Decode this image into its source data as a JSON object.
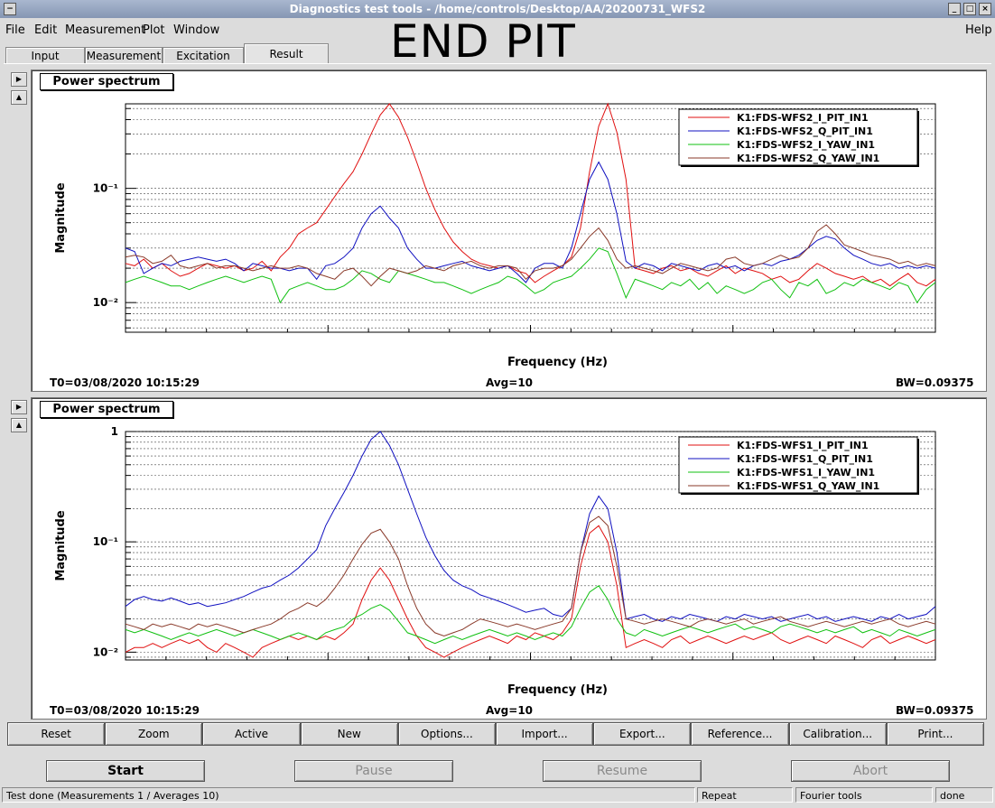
{
  "window": {
    "title": "Diagnostics test tools - /home/controls/Desktop/AA/20200731_WFS2"
  },
  "overlay_text": "END PIT",
  "menu": [
    "File",
    "Edit",
    "Measurement",
    "Plot",
    "Window",
    "Help"
  ],
  "tabs": [
    "Input",
    "Measurement",
    "Excitation",
    "Result"
  ],
  "active_tab": "Result",
  "plots": [
    {
      "title": "Power spectrum",
      "t0": "T0=03/08/2020 10:15:29",
      "avg": "Avg=10",
      "bw": "BW=0.09375",
      "ylabel": "Magnitude",
      "xlabel": "Frequency (Hz)",
      "yticks": [
        "10⁻¹",
        "10⁻²"
      ]
    },
    {
      "title": "Power spectrum",
      "t0": "T0=03/08/2020 10:15:29",
      "avg": "Avg=10",
      "bw": "BW=0.09375",
      "ylabel": "Magnitude",
      "xlabel": "Frequency (Hz)",
      "yticks": [
        "1",
        "10⁻¹",
        "10⁻²"
      ]
    }
  ],
  "chart_data": [
    {
      "type": "line",
      "title": "Power spectrum",
      "xlabel": "Frequency (Hz)",
      "ylabel": "Magnitude",
      "yscale": "log",
      "ylim": [
        0.0055,
        0.55
      ],
      "x": [
        0,
        1,
        2,
        3,
        4,
        5,
        6,
        7,
        8,
        9,
        10,
        11,
        12,
        13,
        14,
        15,
        16,
        17,
        18,
        19,
        20,
        21,
        22,
        23,
        24,
        25,
        26,
        27,
        28,
        29,
        30,
        31,
        32,
        33,
        34,
        35,
        36,
        37,
        38,
        39,
        40,
        41,
        42,
        43,
        44,
        45,
        46,
        47,
        48,
        49,
        50,
        51,
        52,
        53,
        54,
        55,
        56,
        57,
        58,
        59,
        60,
        61,
        62,
        63,
        64,
        65,
        66,
        67,
        68,
        69,
        70,
        71,
        72,
        73,
        74,
        75,
        76,
        77,
        78,
        79,
        80,
        81,
        82,
        83,
        84,
        85,
        86,
        87,
        88,
        89
      ],
      "legend_position": "top-right",
      "series": [
        {
          "name": "K1:FDS-WFS2_I_PIT_IN1",
          "color": "#e01010",
          "values": [
            0.022,
            0.021,
            0.024,
            0.02,
            0.022,
            0.019,
            0.017,
            0.018,
            0.02,
            0.022,
            0.021,
            0.02,
            0.021,
            0.019,
            0.02,
            0.023,
            0.019,
            0.025,
            0.03,
            0.04,
            0.045,
            0.05,
            0.065,
            0.085,
            0.11,
            0.14,
            0.2,
            0.3,
            0.44,
            0.55,
            0.42,
            0.28,
            0.17,
            0.1,
            0.065,
            0.045,
            0.034,
            0.028,
            0.024,
            0.022,
            0.021,
            0.02,
            0.021,
            0.019,
            0.018,
            0.015,
            0.017,
            0.019,
            0.021,
            0.025,
            0.045,
            0.14,
            0.35,
            0.55,
            0.31,
            0.12,
            0.02,
            0.019,
            0.018,
            0.02,
            0.021,
            0.019,
            0.02,
            0.018,
            0.017,
            0.019,
            0.021,
            0.018,
            0.02,
            0.019,
            0.018,
            0.016,
            0.017,
            0.015,
            0.016,
            0.019,
            0.022,
            0.02,
            0.018,
            0.017,
            0.016,
            0.017,
            0.015,
            0.016,
            0.014,
            0.016,
            0.018,
            0.015,
            0.014,
            0.016
          ]
        },
        {
          "name": "K1:FDS-WFS2_Q_PIT_IN1",
          "color": "#1010c0",
          "values": [
            0.03,
            0.028,
            0.018,
            0.02,
            0.022,
            0.021,
            0.023,
            0.024,
            0.025,
            0.024,
            0.023,
            0.024,
            0.022,
            0.019,
            0.022,
            0.021,
            0.02,
            0.02,
            0.019,
            0.02,
            0.02,
            0.016,
            0.021,
            0.022,
            0.025,
            0.03,
            0.045,
            0.06,
            0.07,
            0.055,
            0.045,
            0.03,
            0.024,
            0.02,
            0.02,
            0.021,
            0.022,
            0.023,
            0.021,
            0.02,
            0.019,
            0.02,
            0.021,
            0.018,
            0.015,
            0.02,
            0.022,
            0.022,
            0.02,
            0.03,
            0.06,
            0.12,
            0.17,
            0.12,
            0.06,
            0.023,
            0.02,
            0.022,
            0.021,
            0.019,
            0.022,
            0.021,
            0.02,
            0.019,
            0.021,
            0.022,
            0.02,
            0.021,
            0.019,
            0.021,
            0.022,
            0.021,
            0.023,
            0.024,
            0.026,
            0.03,
            0.035,
            0.038,
            0.036,
            0.03,
            0.026,
            0.024,
            0.022,
            0.021,
            0.022,
            0.02,
            0.021,
            0.02,
            0.021,
            0.02
          ]
        },
        {
          "name": "K1:FDS-WFS2_I_YAW_IN1",
          "color": "#10c010",
          "values": [
            0.015,
            0.016,
            0.017,
            0.016,
            0.015,
            0.014,
            0.014,
            0.013,
            0.014,
            0.015,
            0.016,
            0.017,
            0.016,
            0.015,
            0.016,
            0.017,
            0.016,
            0.01,
            0.013,
            0.014,
            0.015,
            0.014,
            0.013,
            0.013,
            0.014,
            0.016,
            0.019,
            0.018,
            0.016,
            0.015,
            0.019,
            0.018,
            0.017,
            0.016,
            0.015,
            0.015,
            0.014,
            0.013,
            0.012,
            0.013,
            0.014,
            0.015,
            0.017,
            0.016,
            0.014,
            0.012,
            0.013,
            0.015,
            0.016,
            0.017,
            0.02,
            0.024,
            0.03,
            0.028,
            0.018,
            0.011,
            0.016,
            0.015,
            0.014,
            0.013,
            0.015,
            0.014,
            0.016,
            0.013,
            0.015,
            0.012,
            0.014,
            0.013,
            0.012,
            0.013,
            0.015,
            0.016,
            0.013,
            0.011,
            0.015,
            0.014,
            0.016,
            0.012,
            0.013,
            0.015,
            0.014,
            0.016,
            0.015,
            0.014,
            0.013,
            0.015,
            0.014,
            0.01,
            0.013,
            0.015
          ]
        },
        {
          "name": "K1:FDS-WFS2_Q_YAW_IN1",
          "color": "#8a3a2a",
          "values": [
            0.025,
            0.026,
            0.025,
            0.022,
            0.023,
            0.026,
            0.021,
            0.02,
            0.021,
            0.022,
            0.02,
            0.021,
            0.021,
            0.02,
            0.019,
            0.02,
            0.021,
            0.02,
            0.02,
            0.021,
            0.02,
            0.018,
            0.017,
            0.016,
            0.019,
            0.02,
            0.017,
            0.014,
            0.017,
            0.02,
            0.019,
            0.018,
            0.019,
            0.021,
            0.02,
            0.019,
            0.021,
            0.022,
            0.023,
            0.021,
            0.02,
            0.021,
            0.021,
            0.02,
            0.016,
            0.019,
            0.02,
            0.02,
            0.021,
            0.024,
            0.03,
            0.038,
            0.045,
            0.035,
            0.024,
            0.02,
            0.021,
            0.02,
            0.019,
            0.018,
            0.02,
            0.022,
            0.021,
            0.02,
            0.019,
            0.02,
            0.024,
            0.025,
            0.022,
            0.021,
            0.022,
            0.024,
            0.026,
            0.024,
            0.025,
            0.03,
            0.042,
            0.048,
            0.04,
            0.032,
            0.03,
            0.028,
            0.026,
            0.025,
            0.024,
            0.022,
            0.023,
            0.021,
            0.022,
            0.021
          ]
        }
      ]
    },
    {
      "type": "line",
      "title": "Power spectrum",
      "xlabel": "Frequency (Hz)",
      "ylabel": "Magnitude",
      "yscale": "log",
      "ylim": [
        0.0085,
        1.0
      ],
      "x": [
        0,
        1,
        2,
        3,
        4,
        5,
        6,
        7,
        8,
        9,
        10,
        11,
        12,
        13,
        14,
        15,
        16,
        17,
        18,
        19,
        20,
        21,
        22,
        23,
        24,
        25,
        26,
        27,
        28,
        29,
        30,
        31,
        32,
        33,
        34,
        35,
        36,
        37,
        38,
        39,
        40,
        41,
        42,
        43,
        44,
        45,
        46,
        47,
        48,
        49,
        50,
        51,
        52,
        53,
        54,
        55,
        56,
        57,
        58,
        59,
        60,
        61,
        62,
        63,
        64,
        65,
        66,
        67,
        68,
        69,
        70,
        71,
        72,
        73,
        74,
        75,
        76,
        77,
        78,
        79,
        80,
        81,
        82,
        83,
        84,
        85,
        86,
        87,
        88,
        89
      ],
      "legend_position": "top-right",
      "series": [
        {
          "name": "K1:FDS-WFS1_I_PIT_IN1",
          "color": "#e01010",
          "values": [
            0.01,
            0.011,
            0.011,
            0.012,
            0.011,
            0.012,
            0.013,
            0.012,
            0.013,
            0.011,
            0.01,
            0.012,
            0.011,
            0.01,
            0.009,
            0.011,
            0.012,
            0.013,
            0.014,
            0.013,
            0.014,
            0.013,
            0.014,
            0.013,
            0.015,
            0.018,
            0.03,
            0.045,
            0.058,
            0.045,
            0.03,
            0.02,
            0.014,
            0.011,
            0.01,
            0.009,
            0.01,
            0.011,
            0.012,
            0.013,
            0.014,
            0.013,
            0.012,
            0.014,
            0.013,
            0.015,
            0.014,
            0.013,
            0.015,
            0.02,
            0.06,
            0.12,
            0.14,
            0.1,
            0.04,
            0.011,
            0.012,
            0.013,
            0.012,
            0.011,
            0.013,
            0.014,
            0.012,
            0.013,
            0.014,
            0.013,
            0.012,
            0.013,
            0.014,
            0.013,
            0.014,
            0.015,
            0.013,
            0.012,
            0.013,
            0.014,
            0.013,
            0.012,
            0.014,
            0.013,
            0.012,
            0.011,
            0.013,
            0.014,
            0.012,
            0.013,
            0.014,
            0.013,
            0.012,
            0.013
          ]
        },
        {
          "name": "K1:FDS-WFS1_Q_PIT_IN1",
          "color": "#1010c0",
          "values": [
            0.026,
            0.03,
            0.032,
            0.03,
            0.029,
            0.031,
            0.029,
            0.027,
            0.028,
            0.026,
            0.027,
            0.028,
            0.03,
            0.032,
            0.035,
            0.038,
            0.04,
            0.045,
            0.05,
            0.058,
            0.07,
            0.085,
            0.14,
            0.2,
            0.28,
            0.4,
            0.6,
            0.85,
            1.0,
            0.75,
            0.5,
            0.3,
            0.18,
            0.11,
            0.075,
            0.055,
            0.045,
            0.04,
            0.037,
            0.033,
            0.031,
            0.029,
            0.027,
            0.025,
            0.023,
            0.024,
            0.025,
            0.022,
            0.021,
            0.025,
            0.08,
            0.18,
            0.26,
            0.2,
            0.08,
            0.02,
            0.021,
            0.022,
            0.02,
            0.019,
            0.021,
            0.02,
            0.022,
            0.021,
            0.02,
            0.019,
            0.021,
            0.02,
            0.022,
            0.021,
            0.02,
            0.021,
            0.019,
            0.02,
            0.021,
            0.022,
            0.02,
            0.021,
            0.019,
            0.02,
            0.021,
            0.02,
            0.019,
            0.021,
            0.02,
            0.022,
            0.02,
            0.021,
            0.022,
            0.026
          ]
        },
        {
          "name": "K1:FDS-WFS1_I_YAW_IN1",
          "color": "#10c010",
          "values": [
            0.016,
            0.015,
            0.016,
            0.015,
            0.014,
            0.013,
            0.014,
            0.015,
            0.014,
            0.015,
            0.016,
            0.015,
            0.014,
            0.015,
            0.016,
            0.015,
            0.014,
            0.013,
            0.014,
            0.015,
            0.014,
            0.013,
            0.015,
            0.016,
            0.017,
            0.02,
            0.022,
            0.025,
            0.027,
            0.024,
            0.019,
            0.015,
            0.014,
            0.013,
            0.012,
            0.013,
            0.014,
            0.013,
            0.014,
            0.015,
            0.016,
            0.015,
            0.014,
            0.015,
            0.014,
            0.013,
            0.014,
            0.015,
            0.014,
            0.017,
            0.025,
            0.035,
            0.04,
            0.03,
            0.02,
            0.015,
            0.014,
            0.016,
            0.015,
            0.014,
            0.015,
            0.016,
            0.017,
            0.016,
            0.015,
            0.016,
            0.017,
            0.018,
            0.016,
            0.017,
            0.016,
            0.015,
            0.017,
            0.018,
            0.017,
            0.016,
            0.015,
            0.016,
            0.015,
            0.016,
            0.017,
            0.015,
            0.016,
            0.015,
            0.014,
            0.016,
            0.015,
            0.014,
            0.015,
            0.016
          ]
        },
        {
          "name": "K1:FDS-WFS1_Q_YAW_IN1",
          "color": "#8a3a2a",
          "values": [
            0.018,
            0.017,
            0.016,
            0.018,
            0.017,
            0.018,
            0.017,
            0.016,
            0.018,
            0.017,
            0.018,
            0.017,
            0.016,
            0.015,
            0.016,
            0.017,
            0.018,
            0.02,
            0.023,
            0.025,
            0.028,
            0.026,
            0.03,
            0.038,
            0.05,
            0.07,
            0.095,
            0.12,
            0.13,
            0.1,
            0.07,
            0.04,
            0.025,
            0.018,
            0.015,
            0.014,
            0.015,
            0.016,
            0.018,
            0.02,
            0.019,
            0.018,
            0.017,
            0.018,
            0.017,
            0.016,
            0.017,
            0.018,
            0.019,
            0.025,
            0.08,
            0.15,
            0.17,
            0.14,
            0.06,
            0.02,
            0.019,
            0.018,
            0.019,
            0.02,
            0.019,
            0.018,
            0.017,
            0.019,
            0.02,
            0.019,
            0.018,
            0.019,
            0.02,
            0.018,
            0.019,
            0.02,
            0.021,
            0.019,
            0.018,
            0.017,
            0.018,
            0.019,
            0.018,
            0.017,
            0.018,
            0.019,
            0.018,
            0.019,
            0.02,
            0.018,
            0.017,
            0.018,
            0.019,
            0.018
          ]
        }
      ]
    }
  ],
  "toolbar": [
    "Reset",
    "Zoom",
    "Active",
    "New",
    "Options...",
    "Import...",
    "Export...",
    "Reference...",
    "Calibration...",
    "Print..."
  ],
  "controls": {
    "start": "Start",
    "pause": "Pause",
    "resume": "Resume",
    "abort": "Abort"
  },
  "status": {
    "main": "Test done (Measurements 1 / Averages 10)",
    "mode": "Repeat",
    "type": "Fourier tools",
    "state": "done"
  }
}
